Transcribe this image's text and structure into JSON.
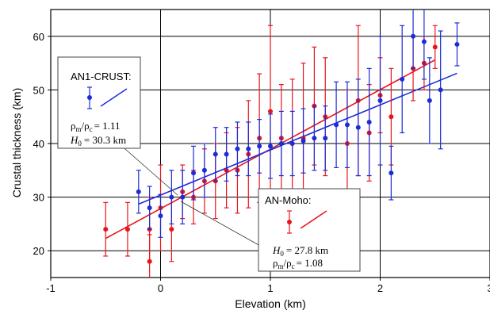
{
  "chart_data": {
    "type": "scatter",
    "xlabel": "Elevation (km)",
    "ylabel": "Crustal thickness (km)",
    "xlim": [
      -1,
      3
    ],
    "ylim": [
      15,
      65
    ],
    "xticks": [
      -1,
      0,
      1,
      2,
      3
    ],
    "yticks": [
      20,
      30,
      40,
      50,
      60
    ],
    "grid": true,
    "series": [
      {
        "name": "AN-Moho",
        "color": "#e8141b",
        "points": [
          {
            "x": -0.5,
            "y": 24,
            "err": 5
          },
          {
            "x": -0.3,
            "y": 24,
            "err": 5
          },
          {
            "x": -0.1,
            "y": 24,
            "err": 6
          },
          {
            "x": -0.1,
            "y": 18,
            "err": 5
          },
          {
            "x": 0.0,
            "y": 28,
            "err": 8
          },
          {
            "x": 0.1,
            "y": 24,
            "err": 6
          },
          {
            "x": 0.2,
            "y": 31,
            "err": 5
          },
          {
            "x": 0.3,
            "y": 30,
            "err": 5
          },
          {
            "x": 0.4,
            "y": 33,
            "err": 6
          },
          {
            "x": 0.5,
            "y": 33,
            "err": 7
          },
          {
            "x": 0.6,
            "y": 35,
            "err": 7
          },
          {
            "x": 0.7,
            "y": 35,
            "err": 8
          },
          {
            "x": 0.8,
            "y": 38,
            "err": 10
          },
          {
            "x": 0.9,
            "y": 41,
            "err": 12
          },
          {
            "x": 1.0,
            "y": 46,
            "err": 16
          },
          {
            "x": 1.1,
            "y": 41,
            "err": 10
          },
          {
            "x": 1.2,
            "y": 40,
            "err": 12
          },
          {
            "x": 1.3,
            "y": 41,
            "err": 14
          },
          {
            "x": 1.4,
            "y": 47,
            "err": 11
          },
          {
            "x": 1.5,
            "y": 45,
            "err": 11
          },
          {
            "x": 1.7,
            "y": 40,
            "err": 10
          },
          {
            "x": 1.8,
            "y": 48,
            "err": 14
          },
          {
            "x": 1.9,
            "y": 42,
            "err": 9
          },
          {
            "x": 2.0,
            "y": 49,
            "err": 7
          },
          {
            "x": 2.1,
            "y": 45,
            "err": 9
          },
          {
            "x": 2.3,
            "y": 54,
            "err": 6
          },
          {
            "x": 2.4,
            "y": 55,
            "err": 5
          },
          {
            "x": 2.5,
            "y": 58,
            "err": 4
          }
        ],
        "fit": {
          "x": [
            -0.5,
            2.5
          ],
          "y": [
            22.3,
            55.6
          ]
        },
        "legend": {
          "title": "AN-Moho:",
          "h0": "= 27.8 km",
          "ratio": "= 1.08"
        }
      },
      {
        "name": "AN1-CRUST",
        "color": "#1b2cd8",
        "points": [
          {
            "x": -0.2,
            "y": 31,
            "err": 4
          },
          {
            "x": -0.1,
            "y": 28,
            "err": 4
          },
          {
            "x": 0.0,
            "y": 26.5,
            "err": 4
          },
          {
            "x": 0.1,
            "y": 30,
            "err": 5
          },
          {
            "x": 0.2,
            "y": 30,
            "err": 5
          },
          {
            "x": 0.3,
            "y": 34.5,
            "err": 5
          },
          {
            "x": 0.4,
            "y": 35,
            "err": 5
          },
          {
            "x": 0.5,
            "y": 38,
            "err": 5
          },
          {
            "x": 0.6,
            "y": 38,
            "err": 5
          },
          {
            "x": 0.7,
            "y": 39,
            "err": 5
          },
          {
            "x": 0.8,
            "y": 39,
            "err": 5
          },
          {
            "x": 0.9,
            "y": 39.5,
            "err": 5
          },
          {
            "x": 1.0,
            "y": 39.5,
            "err": 6
          },
          {
            "x": 1.1,
            "y": 40,
            "err": 6
          },
          {
            "x": 1.2,
            "y": 40,
            "err": 6
          },
          {
            "x": 1.3,
            "y": 40.5,
            "err": 6
          },
          {
            "x": 1.4,
            "y": 41,
            "err": 6
          },
          {
            "x": 1.5,
            "y": 41,
            "err": 6
          },
          {
            "x": 1.6,
            "y": 43.5,
            "err": 8
          },
          {
            "x": 1.7,
            "y": 43.5,
            "err": 8
          },
          {
            "x": 1.8,
            "y": 43,
            "err": 9
          },
          {
            "x": 1.9,
            "y": 44,
            "err": 10
          },
          {
            "x": 2.0,
            "y": 48,
            "err": 12
          },
          {
            "x": 2.1,
            "y": 34.5,
            "err": 5
          },
          {
            "x": 2.2,
            "y": 52,
            "err": 10
          },
          {
            "x": 2.3,
            "y": 60,
            "err": 6
          },
          {
            "x": 2.4,
            "y": 59,
            "err": 7
          },
          {
            "x": 2.45,
            "y": 48,
            "err": 8
          },
          {
            "x": 2.55,
            "y": 50,
            "err": 11
          },
          {
            "x": 2.7,
            "y": 58.5,
            "err": 4
          }
        ],
        "fit": {
          "x": [
            -0.2,
            2.7
          ],
          "y": [
            28.7,
            53.1
          ]
        },
        "legend": {
          "title": "AN1-CRUST:",
          "ratio": "= 1.11",
          "h0": "= 30.3 km"
        }
      }
    ]
  }
}
